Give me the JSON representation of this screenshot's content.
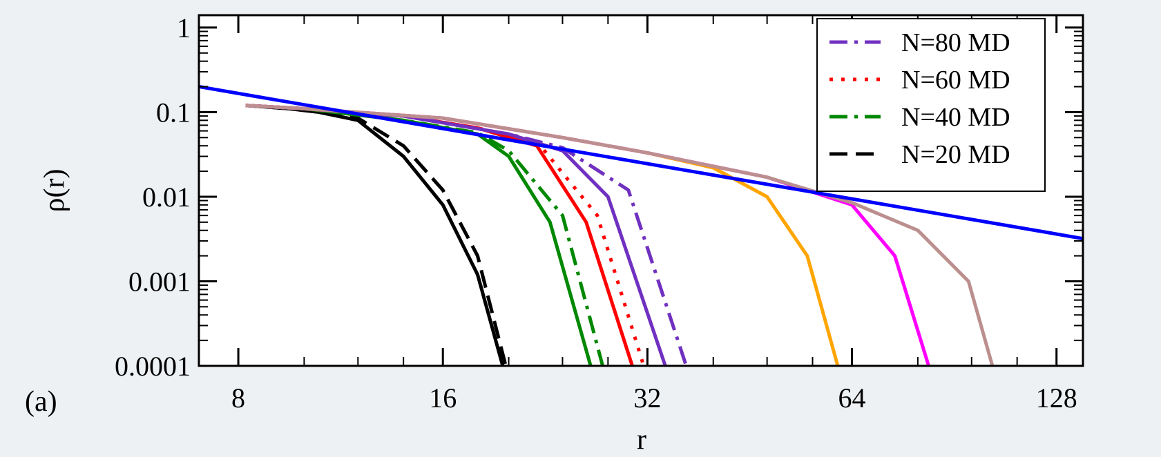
{
  "chart_data": {
    "type": "line",
    "panel_label": "(a)",
    "xlabel": "r",
    "ylabel": "ρ(r)",
    "x_scale": "log2",
    "y_scale": "log10",
    "xlim": [
      7,
      140
    ],
    "ylim": [
      0.0001,
      1.4
    ],
    "x_ticks": [
      8,
      16,
      32,
      64,
      128
    ],
    "x_tick_labels": [
      "8",
      "16",
      "32",
      "64",
      "128"
    ],
    "y_ticks": [
      0.0001,
      0.001,
      0.01,
      0.1,
      1
    ],
    "y_tick_labels": [
      "0.0001",
      "0.001",
      "0.01",
      "0.1",
      "1"
    ],
    "legend_position": "top-right",
    "legend": [
      {
        "label": "N=80 MD",
        "color": "#7030c0",
        "dash": "dash-dot"
      },
      {
        "label": "N=60 MD",
        "color": "#ff0000",
        "dash": "dotted"
      },
      {
        "label": "N=40 MD",
        "color": "#008800",
        "dash": "dash-dot"
      },
      {
        "label": "N=20 MD",
        "color": "#000000",
        "dash": "dashed"
      }
    ],
    "series": [
      {
        "color": "#000000",
        "dash": "solid",
        "x": [
          8.2,
          9.5,
          10.5,
          12,
          14,
          16,
          18,
          19.6
        ],
        "y": [
          0.12,
          0.11,
          0.1,
          0.08,
          0.03,
          0.008,
          0.0012,
          0.0001
        ]
      },
      {
        "color": "#000000",
        "dash": "dashed",
        "x": [
          8.2,
          9.5,
          10.5,
          12,
          14,
          16,
          18,
          19.8
        ],
        "y": [
          0.12,
          0.11,
          0.1,
          0.085,
          0.04,
          0.012,
          0.002,
          0.0001
        ]
      },
      {
        "color": "#008800",
        "dash": "solid",
        "x": [
          8.2,
          10,
          14,
          18,
          20,
          23,
          26.4
        ],
        "y": [
          0.12,
          0.11,
          0.08,
          0.055,
          0.03,
          0.005,
          0.0001
        ]
      },
      {
        "color": "#008800",
        "dash": "dash-dot",
        "x": [
          8.2,
          10,
          14,
          18,
          20,
          24,
          27.5
        ],
        "y": [
          0.12,
          0.11,
          0.08,
          0.057,
          0.035,
          0.006,
          0.0001
        ]
      },
      {
        "color": "#ff0000",
        "dash": "solid",
        "x": [
          8.2,
          10,
          14,
          18,
          22,
          26,
          30.4
        ],
        "y": [
          0.12,
          0.11,
          0.09,
          0.065,
          0.04,
          0.005,
          0.0001
        ]
      },
      {
        "color": "#ff0000",
        "dash": "dotted",
        "x": [
          8.2,
          10,
          14,
          18,
          22,
          27,
          31.6
        ],
        "y": [
          0.12,
          0.11,
          0.09,
          0.065,
          0.045,
          0.006,
          0.0001
        ]
      },
      {
        "color": "#7030c0",
        "dash": "solid",
        "x": [
          8.2,
          10,
          14,
          20,
          24,
          28,
          34
        ],
        "y": [
          0.12,
          0.11,
          0.09,
          0.055,
          0.035,
          0.01,
          0.0001
        ]
      },
      {
        "color": "#7030c0",
        "dash": "dash-dot",
        "x": [
          8.2,
          10,
          14,
          20,
          24,
          30,
          36.5
        ],
        "y": [
          0.12,
          0.11,
          0.09,
          0.055,
          0.038,
          0.012,
          0.0001
        ]
      },
      {
        "color": "#ffa500",
        "dash": "solid",
        "x": [
          8.2,
          10,
          16,
          24,
          32,
          40,
          48,
          55,
          61
        ],
        "y": [
          0.12,
          0.11,
          0.085,
          0.05,
          0.033,
          0.022,
          0.01,
          0.002,
          0.0001
        ]
      },
      {
        "color": "#ff00ff",
        "dash": "solid",
        "x": [
          8.2,
          10,
          16,
          24,
          32,
          48,
          64,
          74,
          83
        ],
        "y": [
          0.12,
          0.11,
          0.085,
          0.05,
          0.033,
          0.017,
          0.008,
          0.002,
          0.0001
        ]
      },
      {
        "color": "#bc8f8f",
        "dash": "solid",
        "x": [
          8.2,
          10,
          16,
          24,
          32,
          48,
          64,
          80,
          95,
          103
        ],
        "y": [
          0.12,
          0.11,
          0.085,
          0.05,
          0.033,
          0.017,
          0.0085,
          0.004,
          0.001,
          0.0001
        ]
      },
      {
        "color": "#0000ff",
        "dash": "solid",
        "x": [
          7,
          140
        ],
        "y": [
          0.2,
          0.0032
        ]
      }
    ]
  }
}
